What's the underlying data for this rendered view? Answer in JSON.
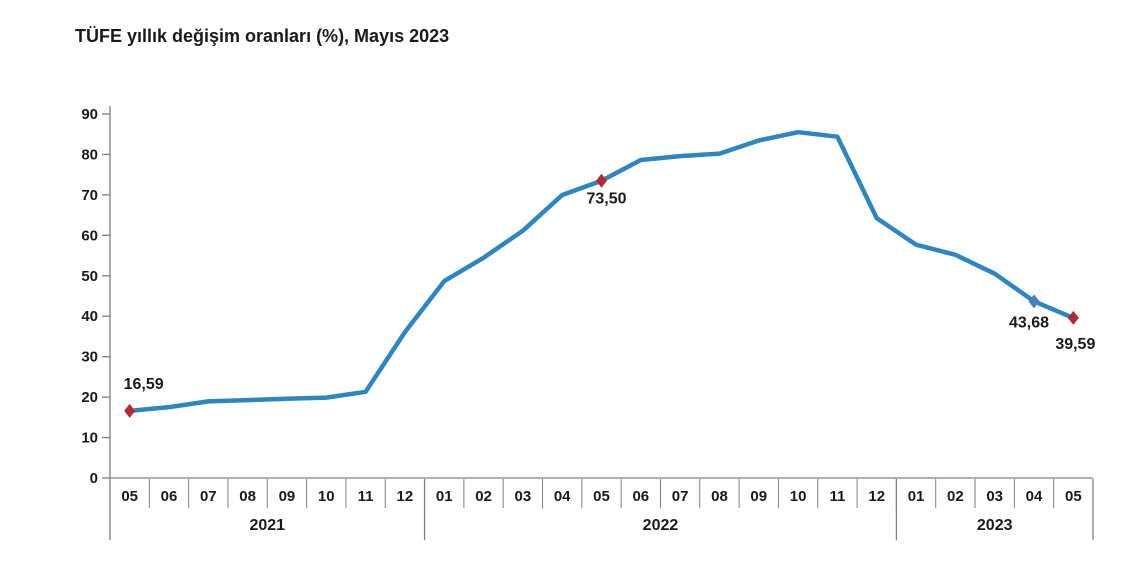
{
  "title": "TÜFE yıllık değişim oranları (%), Mayıs 2023",
  "chart_data": {
    "type": "line",
    "title": "TÜFE yıllık değişim oranları (%), Mayıs 2023",
    "xlabel": "",
    "ylabel": "",
    "ylim": [
      0,
      90
    ],
    "yticks": [
      0,
      10,
      20,
      30,
      40,
      50,
      60,
      70,
      80,
      90
    ],
    "grid": false,
    "legend": false,
    "line_color": "#2E86C1",
    "axis_color": "#808080",
    "text_color": "#1A1A1A",
    "x_groups": [
      {
        "year": "2021",
        "months": [
          "05",
          "06",
          "07",
          "08",
          "09",
          "10",
          "11",
          "12"
        ]
      },
      {
        "year": "2022",
        "months": [
          "01",
          "02",
          "03",
          "04",
          "05",
          "06",
          "07",
          "08",
          "09",
          "10",
          "11",
          "12"
        ]
      },
      {
        "year": "2023",
        "months": [
          "01",
          "02",
          "03",
          "04",
          "05"
        ]
      }
    ],
    "values": [
      16.59,
      17.53,
      18.95,
      19.25,
      19.58,
      19.89,
      21.31,
      36.08,
      48.69,
      54.44,
      61.14,
      69.97,
      73.5,
      78.62,
      79.6,
      80.21,
      83.45,
      85.51,
      84.39,
      64.27,
      57.68,
      55.18,
      50.51,
      43.68,
      39.59
    ],
    "annotated_points": [
      {
        "index": 0,
        "label": "16,59",
        "marker_color": "#B12A31",
        "label_pos": "above-right"
      },
      {
        "index": 12,
        "label": "73,50",
        "marker_color": "#B12A31",
        "label_pos": "below"
      },
      {
        "index": 23,
        "label": "43,68",
        "marker_color": "#4A7EBB",
        "label_pos": "below-left"
      },
      {
        "index": 24,
        "label": "39,59",
        "marker_color": "#B12A31",
        "label_pos": "below-right"
      }
    ]
  }
}
